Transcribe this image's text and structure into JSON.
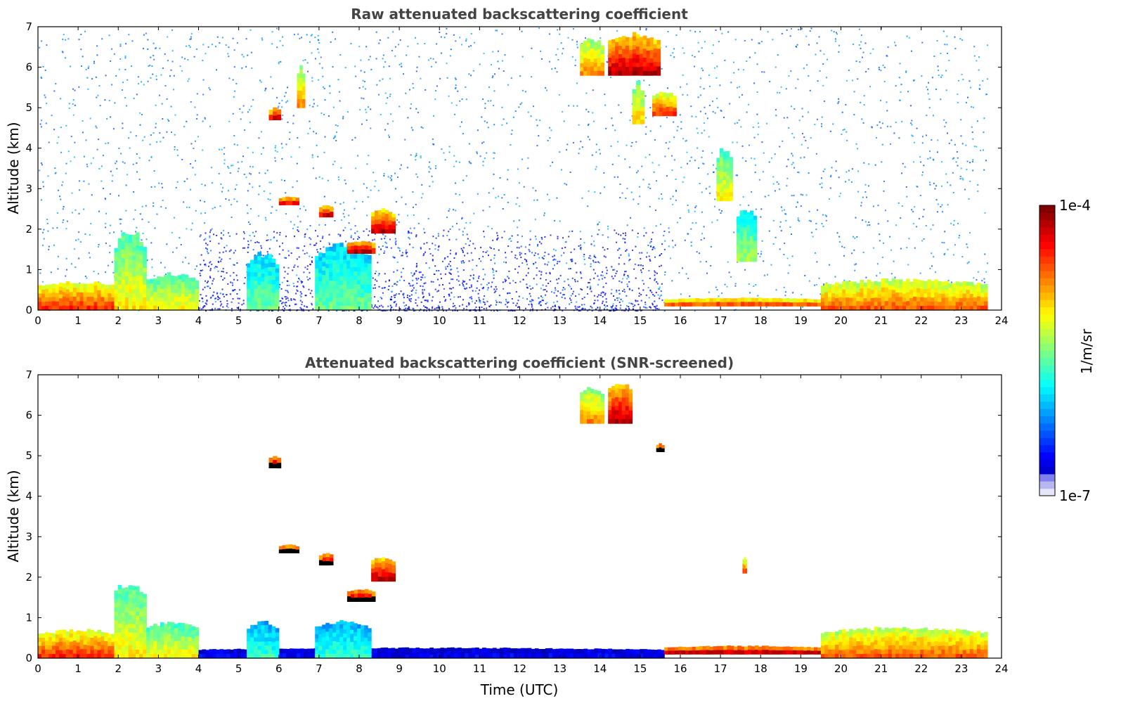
{
  "chart_data": [
    {
      "type": "heatmap",
      "title": "Raw attenuated backscattering coefficient",
      "xlabel": "",
      "ylabel": "Altitude (km)",
      "xlim": [
        0,
        24
      ],
      "ylim": [
        0,
        7
      ],
      "x_ticks": [
        "0",
        "1",
        "2",
        "3",
        "4",
        "5",
        "6",
        "7",
        "8",
        "9",
        "10",
        "11",
        "12",
        "13",
        "14",
        "15",
        "16",
        "17",
        "18",
        "19",
        "20",
        "21",
        "22",
        "23",
        "24"
      ],
      "y_ticks": [
        "0",
        "1",
        "2",
        "3",
        "4",
        "5",
        "6",
        "7"
      ],
      "data_end_time": 23.65,
      "features": [
        {
          "kind": "background_noise",
          "t0": 0,
          "t1": 23.65,
          "z0": 0,
          "z1": 7,
          "level": 0.25
        },
        {
          "kind": "near_surface_noise",
          "t0": 4.0,
          "t1": 15.6,
          "z0": 0,
          "z1": 2.0,
          "level": 0.12
        },
        {
          "kind": "layer",
          "t0": 0.0,
          "t1": 2.0,
          "z0": 0.0,
          "z1": 0.7,
          "level": 0.8
        },
        {
          "kind": "layer",
          "t0": 1.9,
          "t1": 2.7,
          "z0": 0.0,
          "z1": 1.9,
          "level": 0.6
        },
        {
          "kind": "layer",
          "t0": 2.7,
          "t1": 4.0,
          "z0": 0.0,
          "z1": 0.9,
          "level": 0.6
        },
        {
          "kind": "layer",
          "t0": 5.2,
          "t1": 6.0,
          "z0": 0.0,
          "z1": 1.4,
          "level": 0.45
        },
        {
          "kind": "layer",
          "t0": 6.9,
          "t1": 8.3,
          "z0": 0.0,
          "z1": 1.6,
          "level": 0.45
        },
        {
          "kind": "layer",
          "t0": 15.6,
          "t1": 19.5,
          "z0": 0.1,
          "z1": 0.3,
          "level": 0.85
        },
        {
          "kind": "layer",
          "t0": 19.5,
          "t1": 23.65,
          "z0": 0.0,
          "z1": 0.75,
          "level": 0.75
        },
        {
          "kind": "cloud",
          "t0": 5.75,
          "t1": 6.05,
          "z0": 4.7,
          "z1": 5.0,
          "level": 0.95
        },
        {
          "kind": "cloud",
          "t0": 6.45,
          "t1": 6.65,
          "z0": 5.0,
          "z1": 6.0,
          "level": 0.7
        },
        {
          "kind": "cloud",
          "t0": 6.0,
          "t1": 6.5,
          "z0": 2.6,
          "z1": 2.8,
          "level": 0.95
        },
        {
          "kind": "cloud",
          "t0": 7.0,
          "t1": 7.35,
          "z0": 2.3,
          "z1": 2.6,
          "level": 0.95
        },
        {
          "kind": "cloud",
          "t0": 7.7,
          "t1": 8.4,
          "z0": 1.4,
          "z1": 1.7,
          "level": 0.95
        },
        {
          "kind": "cloud",
          "t0": 8.3,
          "t1": 8.9,
          "z0": 1.9,
          "z1": 2.5,
          "level": 0.9
        },
        {
          "kind": "cloud",
          "t0": 13.5,
          "t1": 14.1,
          "z0": 5.8,
          "z1": 6.7,
          "level": 0.7
        },
        {
          "kind": "cloud",
          "t0": 14.2,
          "t1": 15.5,
          "z0": 5.8,
          "z1": 6.8,
          "level": 0.9
        },
        {
          "kind": "cloud",
          "t0": 14.8,
          "t1": 15.1,
          "z0": 4.6,
          "z1": 5.6,
          "level": 0.65
        },
        {
          "kind": "cloud",
          "t0": 15.3,
          "t1": 15.9,
          "z0": 4.8,
          "z1": 5.4,
          "level": 0.8
        },
        {
          "kind": "cloud",
          "t0": 16.9,
          "t1": 17.3,
          "z0": 2.7,
          "z1": 4.0,
          "level": 0.6
        },
        {
          "kind": "cloud",
          "t0": 17.4,
          "t1": 17.9,
          "z0": 1.2,
          "z1": 2.5,
          "level": 0.5
        }
      ]
    },
    {
      "type": "heatmap",
      "title": "Attenuated backscattering coefficient (SNR-screened)",
      "xlabel": "Time (UTC)",
      "ylabel": "Altitude (km)",
      "xlim": [
        0,
        24
      ],
      "ylim": [
        0,
        7
      ],
      "x_ticks": [
        "0",
        "1",
        "2",
        "3",
        "4",
        "5",
        "6",
        "7",
        "8",
        "9",
        "10",
        "11",
        "12",
        "13",
        "14",
        "15",
        "16",
        "17",
        "18",
        "19",
        "20",
        "21",
        "22",
        "23",
        "24"
      ],
      "y_ticks": [
        "0",
        "1",
        "2",
        "3",
        "4",
        "5",
        "6",
        "7"
      ],
      "data_end_time": 23.65,
      "features": [
        {
          "kind": "layer",
          "t0": 0.0,
          "t1": 2.0,
          "z0": 0.0,
          "z1": 0.7,
          "level": 0.8
        },
        {
          "kind": "layer",
          "t0": 1.9,
          "t1": 2.7,
          "z0": 0.0,
          "z1": 1.9,
          "level": 0.6
        },
        {
          "kind": "layer",
          "t0": 2.7,
          "t1": 4.0,
          "z0": 0.0,
          "z1": 0.9,
          "level": 0.6
        },
        {
          "kind": "layer",
          "t0": 4.0,
          "t1": 15.6,
          "z0": 0.0,
          "z1": 0.25,
          "level": 0.12
        },
        {
          "kind": "layer",
          "t0": 5.2,
          "t1": 6.0,
          "z0": 0.0,
          "z1": 0.9,
          "level": 0.4
        },
        {
          "kind": "layer",
          "t0": 6.9,
          "t1": 8.3,
          "z0": 0.0,
          "z1": 0.9,
          "level": 0.4
        },
        {
          "kind": "layer",
          "t0": 15.6,
          "t1": 19.5,
          "z0": 0.1,
          "z1": 0.3,
          "level": 1.0
        },
        {
          "kind": "layer",
          "t0": 19.5,
          "t1": 23.65,
          "z0": 0.0,
          "z1": 0.75,
          "level": 0.75
        },
        {
          "kind": "cloud",
          "t0": 5.75,
          "t1": 6.05,
          "z0": 4.7,
          "z1": 5.0,
          "level": 1.0
        },
        {
          "kind": "cloud",
          "t0": 6.0,
          "t1": 6.5,
          "z0": 2.6,
          "z1": 2.8,
          "level": 1.0
        },
        {
          "kind": "cloud",
          "t0": 7.0,
          "t1": 7.35,
          "z0": 2.3,
          "z1": 2.6,
          "level": 1.0
        },
        {
          "kind": "cloud",
          "t0": 7.7,
          "t1": 8.4,
          "z0": 1.4,
          "z1": 1.7,
          "level": 1.0
        },
        {
          "kind": "cloud",
          "t0": 8.3,
          "t1": 8.9,
          "z0": 1.9,
          "z1": 2.5,
          "level": 0.9
        },
        {
          "kind": "cloud",
          "t0": 13.5,
          "t1": 14.1,
          "z0": 5.8,
          "z1": 6.7,
          "level": 0.7
        },
        {
          "kind": "cloud",
          "t0": 14.2,
          "t1": 14.8,
          "z0": 5.8,
          "z1": 6.8,
          "level": 0.9
        },
        {
          "kind": "cloud",
          "t0": 15.4,
          "t1": 15.6,
          "z0": 5.1,
          "z1": 5.3,
          "level": 1.0
        },
        {
          "kind": "cloud",
          "t0": 17.55,
          "t1": 17.65,
          "z0": 2.1,
          "z1": 2.5,
          "level": 0.8
        }
      ]
    }
  ],
  "colorbar": {
    "label": "1/m/sr",
    "max_label": "1e-4",
    "min_label": "1e-7",
    "colormap": "jet",
    "scale": "log"
  },
  "colors": {
    "title": "#444444",
    "axis": "#000000",
    "background": "#ffffff"
  }
}
